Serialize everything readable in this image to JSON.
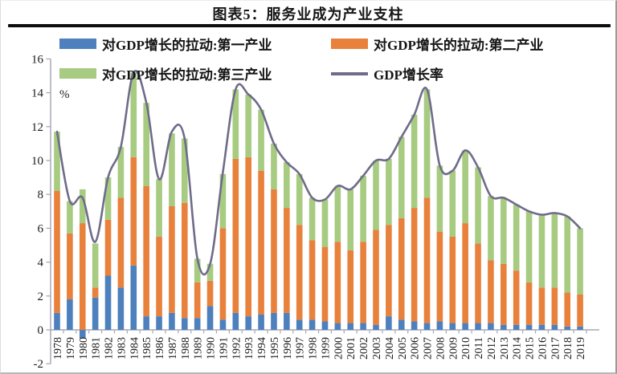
{
  "page": {
    "title": "图表5：服务业成为产业支柱"
  },
  "legend": {
    "items": [
      {
        "label": "对GDP增长的拉动:第一产业",
        "color": "#4d80bd",
        "swatch": "box"
      },
      {
        "label": "对GDP增长的拉动:第二产业",
        "color": "#e8813c",
        "swatch": "box"
      },
      {
        "label": "对GDP增长的拉动:第三产业",
        "color": "#a7cb80",
        "swatch": "box"
      },
      {
        "label": "GDP增长率",
        "color": "#6f6b8b",
        "swatch": "line"
      }
    ]
  },
  "axes": {
    "y_unit_label": "%",
    "y_ticks": [
      16,
      14,
      12,
      10,
      8,
      6,
      4,
      2,
      0,
      -2
    ]
  },
  "chart_data": {
    "type": "bar",
    "subtype": "stacked-bars-with-line-overlay",
    "title": "图表5：服务业成为产业支柱",
    "ylabel": "%",
    "ylim": [
      -2,
      16
    ],
    "ytick_step": 2,
    "grid": false,
    "legend_position": "top-left",
    "categories": [
      "1978",
      "1979",
      "1980",
      "1981",
      "1982",
      "1983",
      "1984",
      "1985",
      "1986",
      "1987",
      "1988",
      "1989",
      "1990",
      "1991",
      "1992",
      "1993",
      "1994",
      "1995",
      "1996",
      "1997",
      "1998",
      "1999",
      "2000",
      "2001",
      "2002",
      "2003",
      "2004",
      "2005",
      "2006",
      "2007",
      "2008",
      "2009",
      "2010",
      "2011",
      "2012",
      "2013",
      "2014",
      "2015",
      "2016",
      "2017",
      "2018",
      "2019"
    ],
    "series": [
      {
        "name": "对GDP增长的拉动:第一产业",
        "key": "primary",
        "type": "bar",
        "color": "#4d80bd",
        "values": [
          1.0,
          1.8,
          -0.5,
          1.9,
          3.2,
          2.5,
          3.8,
          0.8,
          0.8,
          1.0,
          0.7,
          0.7,
          1.4,
          0.6,
          1.0,
          0.8,
          0.9,
          1.0,
          1.0,
          0.6,
          0.6,
          0.5,
          0.4,
          0.4,
          0.4,
          0.3,
          0.8,
          0.6,
          0.5,
          0.4,
          0.5,
          0.4,
          0.4,
          0.4,
          0.4,
          0.3,
          0.3,
          0.3,
          0.3,
          0.3,
          0.2,
          0.2
        ]
      },
      {
        "name": "对GDP增长的拉动:第二产业",
        "key": "secondary",
        "type": "bar",
        "color": "#e8813c",
        "values": [
          7.2,
          3.9,
          6.3,
          0.6,
          3.3,
          5.3,
          6.4,
          7.7,
          4.7,
          6.3,
          6.8,
          2.1,
          1.5,
          5.4,
          9.1,
          9.4,
          8.5,
          7.3,
          6.2,
          5.6,
          4.7,
          4.4,
          4.8,
          4.3,
          4.8,
          5.6,
          5.4,
          6.0,
          6.7,
          7.4,
          5.3,
          5.1,
          5.9,
          4.7,
          3.7,
          3.6,
          3.2,
          2.5,
          2.2,
          2.2,
          2.0,
          1.9
        ]
      },
      {
        "name": "对GDP增长的拉动:第三产业",
        "key": "tertiary",
        "type": "bar",
        "color": "#a7cb80",
        "values": [
          3.5,
          1.9,
          2.0,
          2.6,
          2.5,
          3.0,
          5.0,
          4.9,
          3.4,
          4.3,
          3.8,
          1.4,
          1.0,
          3.2,
          4.1,
          3.7,
          3.6,
          2.7,
          2.7,
          3.0,
          2.5,
          2.8,
          3.3,
          3.6,
          3.9,
          4.1,
          3.9,
          4.8,
          5.5,
          6.4,
          3.9,
          3.9,
          4.3,
          4.5,
          3.8,
          3.9,
          3.9,
          4.2,
          4.3,
          4.4,
          4.5,
          3.9
        ]
      },
      {
        "name": "GDP增长率",
        "key": "gdp-growth-rate",
        "type": "line",
        "color": "#6f6b8b",
        "values": [
          11.7,
          7.6,
          7.8,
          5.2,
          9.0,
          10.8,
          15.2,
          13.4,
          8.9,
          11.7,
          11.3,
          4.2,
          3.9,
          9.3,
          14.2,
          13.9,
          13.0,
          11.0,
          9.9,
          9.2,
          7.8,
          7.7,
          8.5,
          8.3,
          9.1,
          10.0,
          10.1,
          11.4,
          12.7,
          14.2,
          9.7,
          9.4,
          10.6,
          9.6,
          7.9,
          7.8,
          7.4,
          7.0,
          6.8,
          6.9,
          6.7,
          6.0
        ]
      }
    ]
  }
}
